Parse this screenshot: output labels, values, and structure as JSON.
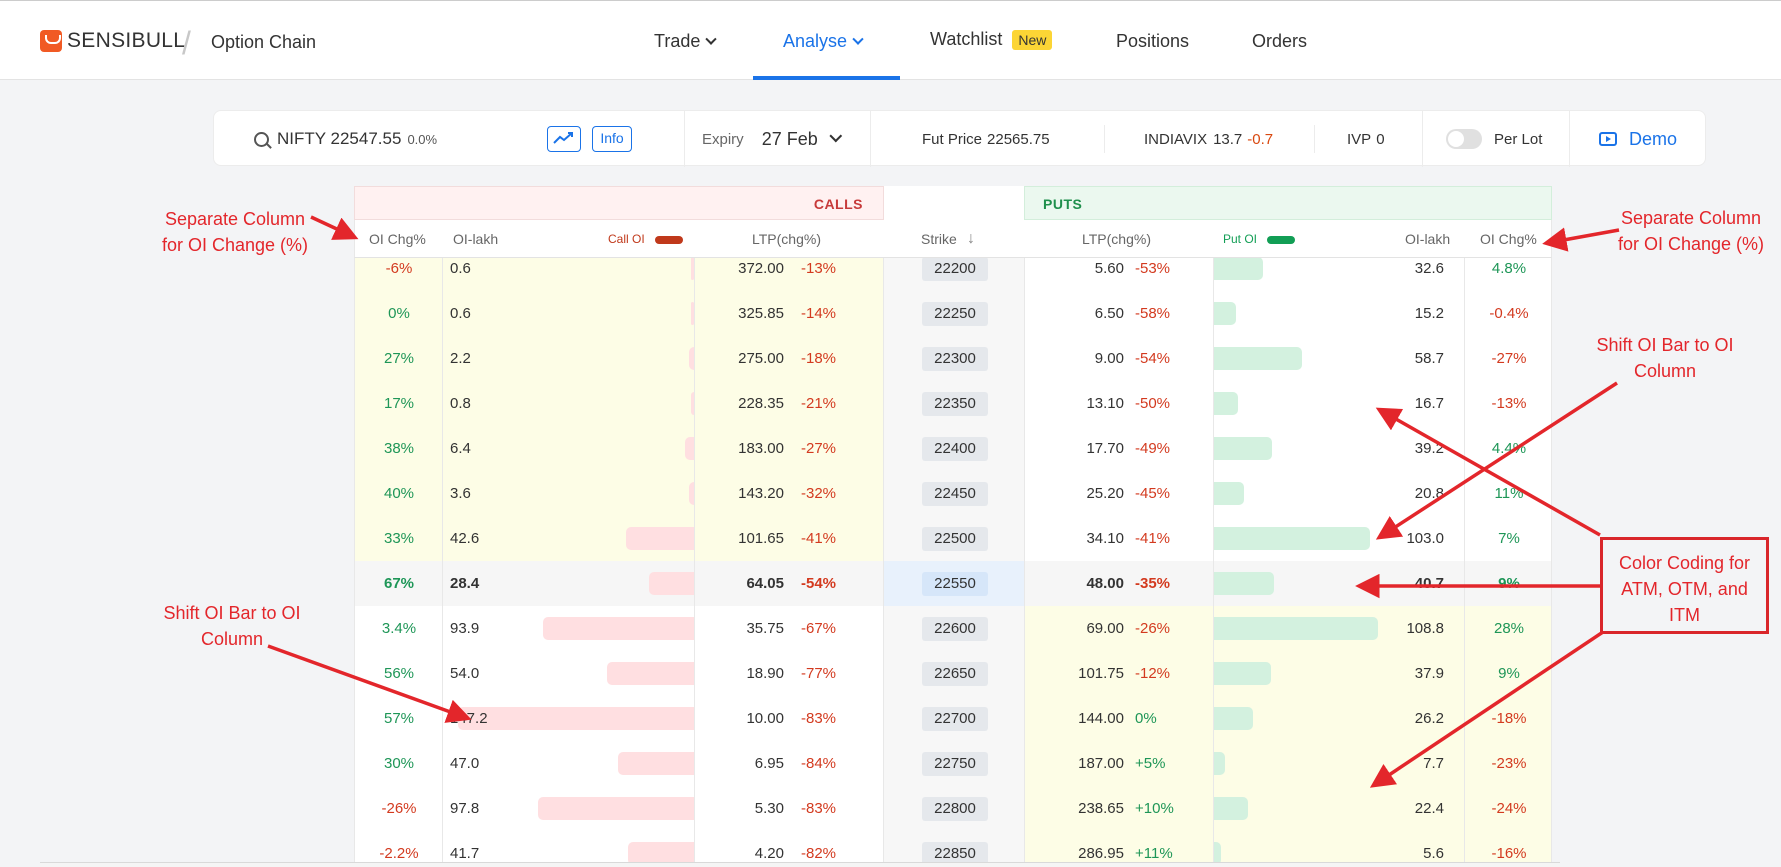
{
  "brand": {
    "logo_text": "SENSIBULL",
    "separator": "/",
    "crumb": "Option Chain"
  },
  "nav": {
    "trade": "Trade",
    "analyse": "Analyse",
    "watchlist": "Watchlist",
    "watchlist_badge": "New",
    "positions": "Positions",
    "orders": "Orders"
  },
  "toolbar": {
    "symbol": "NIFTY 22547.55",
    "symbol_change": "0.0%",
    "info_label": "Info",
    "expiry_label": "Expiry",
    "expiry_value": "27 Feb",
    "fut_label": "Fut Price",
    "fut_value": "22565.75",
    "vix_label": "INDIAVIX",
    "vix_value": "13.7",
    "vix_change": "-0.7",
    "ivp_label": "IVP",
    "ivp_value": "0",
    "per_lot_label": "Per Lot",
    "demo_label": "Demo"
  },
  "chain": {
    "calls_title": "CALLS",
    "puts_title": "PUTS",
    "headers": {
      "call_oi_chg": "OI Chg%",
      "call_oi_lakh": "OI-lakh",
      "call_oi_legend": "Call OI",
      "call_ltp": "LTP(chg%)",
      "strike": "Strike",
      "put_ltp": "LTP(chg%)",
      "put_oi_legend": "Put OI",
      "put_oi_lakh": "OI-lakh",
      "put_oi_chg": "OI Chg%"
    },
    "colors": {
      "call_bar": "#ffdfe1",
      "put_bar": "#d3f1df",
      "itm": "#fdfde6",
      "atm": "#f6f6f6",
      "atm_strike": "#d6e6f9",
      "call_legend": "#c0391b",
      "put_legend": "#129e55"
    },
    "rows": [
      {
        "c_chg": "-6%",
        "c_oi": "0.6",
        "c_bar": 0.0,
        "c_ltp": "372.00",
        "c_ltp_chg": "-13%",
        "strike": "22200",
        "p_ltp": "5.60",
        "p_ltp_chg": "-53%",
        "p_bar": 0.3,
        "p_oi": "32.6",
        "p_chg": "4.8%",
        "zone": "call_itm"
      },
      {
        "c_chg": "0%",
        "c_oi": "0.6",
        "c_bar": 0.0,
        "c_ltp": "325.85",
        "c_ltp_chg": "-14%",
        "strike": "22250",
        "p_ltp": "6.50",
        "p_ltp_chg": "-58%",
        "p_bar": 0.14,
        "p_oi": "15.2",
        "p_chg": "-0.4%",
        "zone": "call_itm"
      },
      {
        "c_chg": "27%",
        "c_oi": "2.2",
        "c_bar": 0.02,
        "c_ltp": "275.00",
        "c_ltp_chg": "-18%",
        "strike": "22300",
        "p_ltp": "9.00",
        "p_ltp_chg": "-54%",
        "p_bar": 0.54,
        "p_oi": "58.7",
        "p_chg": "-27%",
        "zone": "call_itm"
      },
      {
        "c_chg": "17%",
        "c_oi": "0.8",
        "c_bar": 0.01,
        "c_ltp": "228.35",
        "c_ltp_chg": "-21%",
        "strike": "22350",
        "p_ltp": "13.10",
        "p_ltp_chg": "-50%",
        "p_bar": 0.15,
        "p_oi": "16.7",
        "p_chg": "-13%",
        "zone": "call_itm"
      },
      {
        "c_chg": "38%",
        "c_oi": "6.4",
        "c_bar": 0.04,
        "c_ltp": "183.00",
        "c_ltp_chg": "-27%",
        "strike": "22400",
        "p_ltp": "17.70",
        "p_ltp_chg": "-49%",
        "p_bar": 0.36,
        "p_oi": "39.2",
        "p_chg": "4.4%",
        "zone": "call_itm"
      },
      {
        "c_chg": "40%",
        "c_oi": "3.6",
        "c_bar": 0.02,
        "c_ltp": "143.20",
        "c_ltp_chg": "-32%",
        "strike": "22450",
        "p_ltp": "25.20",
        "p_ltp_chg": "-45%",
        "p_bar": 0.19,
        "p_oi": "20.8",
        "p_chg": "11%",
        "zone": "call_itm"
      },
      {
        "c_chg": "33%",
        "c_oi": "42.6",
        "c_bar": 0.29,
        "c_ltp": "101.65",
        "c_ltp_chg": "-41%",
        "strike": "22500",
        "p_ltp": "34.10",
        "p_ltp_chg": "-41%",
        "p_bar": 0.95,
        "p_oi": "103.0",
        "p_chg": "7%",
        "zone": "call_itm"
      },
      {
        "c_chg": "67%",
        "c_oi": "28.4",
        "c_bar": 0.19,
        "c_ltp": "64.05",
        "c_ltp_chg": "-54%",
        "strike": "22550",
        "p_ltp": "48.00",
        "p_ltp_chg": "-35%",
        "p_bar": 0.37,
        "p_oi": "40.7",
        "p_chg": "9%",
        "zone": "atm"
      },
      {
        "c_chg": "3.4%",
        "c_oi": "93.9",
        "c_bar": 0.64,
        "c_ltp": "35.75",
        "c_ltp_chg": "-67%",
        "strike": "22600",
        "p_ltp": "69.00",
        "p_ltp_chg": "-26%",
        "p_bar": 1.0,
        "p_oi": "108.8",
        "p_chg": "28%",
        "zone": "put_itm"
      },
      {
        "c_chg": "56%",
        "c_oi": "54.0",
        "c_bar": 0.37,
        "c_ltp": "18.90",
        "c_ltp_chg": "-77%",
        "strike": "22650",
        "p_ltp": "101.75",
        "p_ltp_chg": "-12%",
        "p_bar": 0.35,
        "p_oi": "37.9",
        "p_chg": "9%",
        "zone": "put_itm"
      },
      {
        "c_chg": "57%",
        "c_oi": "147.2",
        "c_bar": 1.0,
        "c_ltp": "10.00",
        "c_ltp_chg": "-83%",
        "strike": "22700",
        "p_ltp": "144.00",
        "p_ltp_chg": "0%",
        "p_bar": 0.24,
        "p_oi": "26.2",
        "p_chg": "-18%",
        "zone": "put_itm"
      },
      {
        "c_chg": "30%",
        "c_oi": "47.0",
        "c_bar": 0.32,
        "c_ltp": "6.95",
        "c_ltp_chg": "-84%",
        "strike": "22750",
        "p_ltp": "187.00",
        "p_ltp_chg": "+5%",
        "p_bar": 0.07,
        "p_oi": "7.7",
        "p_chg": "-23%",
        "zone": "put_itm"
      },
      {
        "c_chg": "-26%",
        "c_oi": "97.8",
        "c_bar": 0.66,
        "c_ltp": "5.30",
        "c_ltp_chg": "-83%",
        "strike": "22800",
        "p_ltp": "238.65",
        "p_ltp_chg": "+10%",
        "p_bar": 0.21,
        "p_oi": "22.4",
        "p_chg": "-24%",
        "zone": "put_itm"
      },
      {
        "c_chg": "-2.2%",
        "c_oi": "41.7",
        "c_bar": 0.28,
        "c_ltp": "4.20",
        "c_ltp_chg": "-82%",
        "strike": "22850",
        "p_ltp": "286.95",
        "p_ltp_chg": "+11%",
        "p_bar": 0.05,
        "p_oi": "5.6",
        "p_chg": "-16%",
        "zone": "put_itm"
      }
    ]
  },
  "annotations": {
    "left_top": "Separate Column\nfor OI Change (%)",
    "right_top": "Separate Column\nfor OI Change (%)",
    "right_shift": "Shift OI Bar to OI\nColumn",
    "left_shift": "Shift OI Bar to OI\nColumn",
    "color_coding": "Color Coding for\nATM, OTM, and\nITM",
    "color": "#e3262b"
  }
}
